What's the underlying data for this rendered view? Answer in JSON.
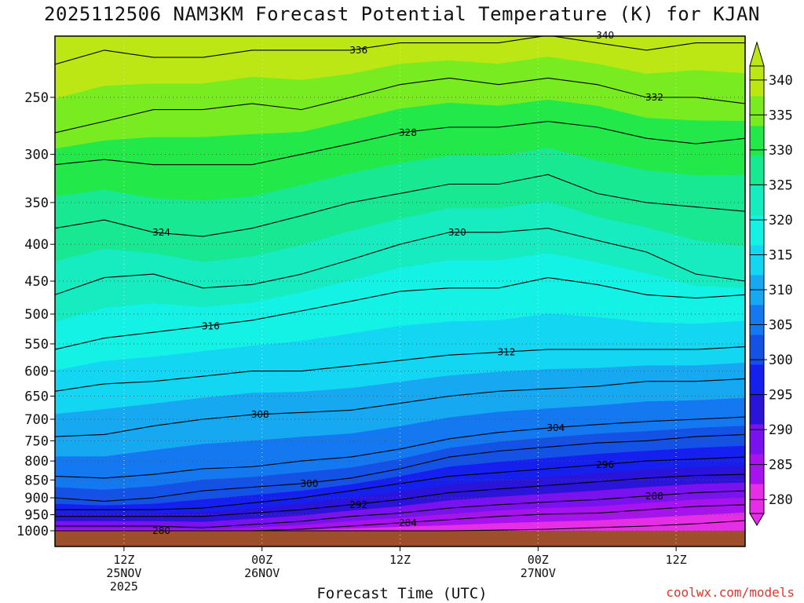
{
  "title": "2025112506 NAM3KM Forecast Potential Temperature (K) for KJAN",
  "xaxis_title": "Forecast Time (UTC)",
  "watermark": "coolwx.com/models",
  "colors": {
    "ground": "#9c4f2a",
    "contour_line": "#000000",
    "grid": "#555555",
    "scale": [
      "#e62ee6",
      "#a713ef",
      "#7a12f0",
      "#2a14d9",
      "#1520ee",
      "#1452e6",
      "#1478f0",
      "#16a8f0",
      "#12d6f2",
      "#14f2e6",
      "#16ecc0",
      "#18e892",
      "#22e84a",
      "#78ec20",
      "#bce614"
    ]
  },
  "colorbar_ticks": [
    "280",
    "285",
    "290",
    "295",
    "300",
    "305",
    "310",
    "315",
    "320",
    "325",
    "330",
    "335",
    "340"
  ],
  "chart_data": {
    "type": "heatmap",
    "title": "2025112506 NAM3KM Forecast Potential Temperature (K) for KJAN",
    "xlabel": "Forecast Time (UTC)",
    "ylabel": "",
    "y_scale": "log-pressure (hPa), inverted",
    "ylim": [
      1000,
      200
    ],
    "y_ticks": [
      "250",
      "300",
      "350",
      "400",
      "450",
      "500",
      "550",
      "600",
      "650",
      "700",
      "750",
      "800",
      "850",
      "900",
      "950",
      "1000"
    ],
    "x_ticks": [
      {
        "hour": 6,
        "line1": "12Z",
        "line2": "25NOV",
        "line3": "2025"
      },
      {
        "hour": 18,
        "line1": "00Z",
        "line2": "26NOV",
        "line3": ""
      },
      {
        "hour": 30,
        "line1": "12Z",
        "line2": "",
        "line3": ""
      },
      {
        "hour": 42,
        "line1": "00Z",
        "line2": "27NOV",
        "line3": ""
      },
      {
        "hour": 54,
        "line1": "12Z",
        "line2": "",
        "line3": ""
      }
    ],
    "xlim_hours": [
      0,
      60
    ],
    "contour_interval_K": 4,
    "colorbar_range_K": [
      280,
      340
    ],
    "isentropes": [
      {
        "theta": 280,
        "label": "280",
        "p": [
          1000,
          1000,
          1000,
          1000,
          1000,
          1000,
          1000,
          1000,
          1000,
          998,
          995,
          990,
          985,
          978,
          968
        ]
      },
      {
        "theta": 284,
        "label": "284",
        "p": [
          1000,
          1000,
          1000,
          1000,
          1000,
          995,
          985,
          975,
          965,
          955,
          948,
          945,
          935,
          925,
          920
        ]
      },
      {
        "theta": 288,
        "label": "288",
        "p": [
          985,
          985,
          985,
          990,
          980,
          970,
          955,
          945,
          930,
          920,
          912,
          905,
          895,
          885,
          880
        ]
      },
      {
        "theta": 292,
        "label": "292",
        "p": [
          955,
          955,
          955,
          955,
          945,
          935,
          920,
          905,
          885,
          875,
          865,
          855,
          845,
          838,
          835
        ]
      },
      {
        "theta": 296,
        "label": "296",
        "p": [
          935,
          935,
          935,
          930,
          915,
          900,
          880,
          860,
          840,
          830,
          820,
          810,
          800,
          795,
          790
        ]
      },
      {
        "theta": 300,
        "label": "300",
        "p": [
          900,
          910,
          900,
          880,
          870,
          860,
          845,
          820,
          790,
          775,
          765,
          755,
          750,
          740,
          735
        ]
      },
      {
        "theta": 304,
        "label": "304",
        "p": [
          840,
          845,
          835,
          820,
          815,
          800,
          790,
          770,
          745,
          730,
          720,
          712,
          705,
          700,
          695
        ]
      },
      {
        "theta": 308,
        "label": "308",
        "p": [
          740,
          735,
          715,
          700,
          690,
          685,
          680,
          665,
          650,
          640,
          635,
          630,
          620,
          620,
          615
        ]
      },
      {
        "theta": 312,
        "label": "312",
        "p": [
          640,
          625,
          620,
          610,
          600,
          600,
          590,
          580,
          570,
          565,
          560,
          560,
          560,
          560,
          555
        ]
      },
      {
        "theta": 316,
        "label": "316",
        "p": [
          560,
          540,
          530,
          520,
          510,
          495,
          480,
          465,
          460,
          460,
          445,
          455,
          470,
          475,
          470
        ]
      },
      {
        "theta": 320,
        "label": "320",
        "p": [
          470,
          445,
          440,
          460,
          455,
          440,
          420,
          400,
          385,
          385,
          380,
          395,
          410,
          440,
          450
        ]
      },
      {
        "theta": 324,
        "label": "324",
        "p": [
          380,
          370,
          385,
          390,
          380,
          365,
          350,
          340,
          330,
          330,
          320,
          340,
          350,
          355,
          360
        ]
      },
      {
        "theta": 328,
        "label": "328",
        "p": [
          310,
          305,
          310,
          310,
          310,
          300,
          290,
          280,
          275,
          275,
          270,
          275,
          285,
          290,
          285
        ]
      },
      {
        "theta": 332,
        "label": "332",
        "p": [
          280,
          270,
          260,
          260,
          255,
          260,
          250,
          240,
          235,
          240,
          235,
          240,
          250,
          250,
          255
        ]
      },
      {
        "theta": 336,
        "label": "336",
        "p": [
          225,
          215,
          220,
          220,
          215,
          215,
          215,
          210,
          210,
          210,
          205,
          210,
          215,
          210,
          210
        ]
      },
      {
        "theta": 340,
        "label": "340",
        "p": [
          205,
          205,
          205,
          205,
          205,
          205,
          205,
          205,
          205,
          205,
          205,
          205,
          205,
          205,
          205
        ]
      }
    ]
  }
}
